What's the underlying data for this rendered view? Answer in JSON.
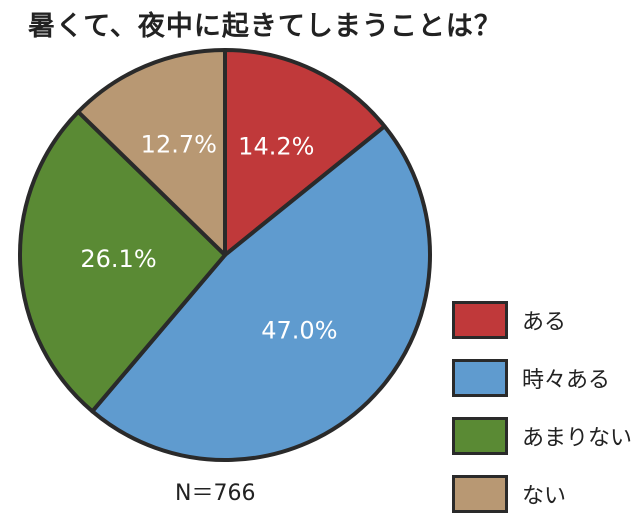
{
  "chart_data": {
    "type": "pie",
    "title": "暑くて、夜中に起きてしまうことは？",
    "categories": [
      "ある",
      "時々ある",
      "あまりない",
      "ない"
    ],
    "values": [
      14.2,
      47.0,
      26.1,
      12.7
    ],
    "value_labels": [
      "14.2%",
      "47.0%",
      "26.1%",
      "12.7%"
    ],
    "colors": [
      "#c0393a",
      "#5f9bcf",
      "#5a8a34",
      "#b89873"
    ],
    "start_angle_deg": 0,
    "direction": "clockwise",
    "legend_position": "right-bottom",
    "note": "N＝766"
  }
}
